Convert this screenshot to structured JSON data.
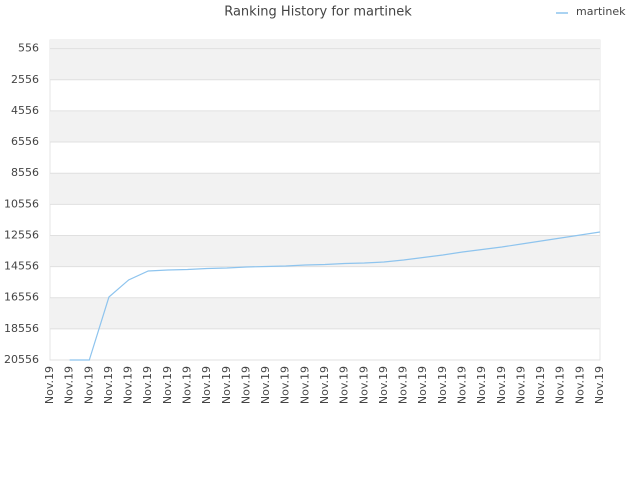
{
  "chart_data": {
    "type": "line",
    "title": "Ranking History for martinek",
    "categories": [
      "Nov.19",
      "Nov.19",
      "Nov.19",
      "Nov.19",
      "Nov.19",
      "Nov.19",
      "Nov.19",
      "Nov.19",
      "Nov.19",
      "Nov.19",
      "Nov.19",
      "Nov.19",
      "Nov.19",
      "Nov.19",
      "Nov.19",
      "Nov.19",
      "Nov.19",
      "Nov.19",
      "Nov.19",
      "Nov.19",
      "Nov.19",
      "Nov.19",
      "Nov.19",
      "Nov.19",
      "Nov.19",
      "Nov.19",
      "Nov.19",
      "Nov.19",
      "Nov.19"
    ],
    "series": [
      {
        "name": "martinek",
        "color": "#8ec4ee",
        "values": [
          null,
          20556,
          20556,
          16510,
          15417,
          14839,
          14775,
          14743,
          14678,
          14646,
          14582,
          14550,
          14518,
          14453,
          14421,
          14357,
          14325,
          14261,
          14132,
          13972,
          13811,
          13618,
          13458,
          13297,
          13104,
          12912,
          12719,
          12526,
          12333
        ]
      }
    ],
    "ylim": [
      20556,
      0
    ],
    "yticks": [
      556,
      2556,
      4556,
      6556,
      8556,
      10556,
      12556,
      14556,
      16556,
      18556,
      20556
    ],
    "grid": true,
    "legend": "top-right"
  }
}
